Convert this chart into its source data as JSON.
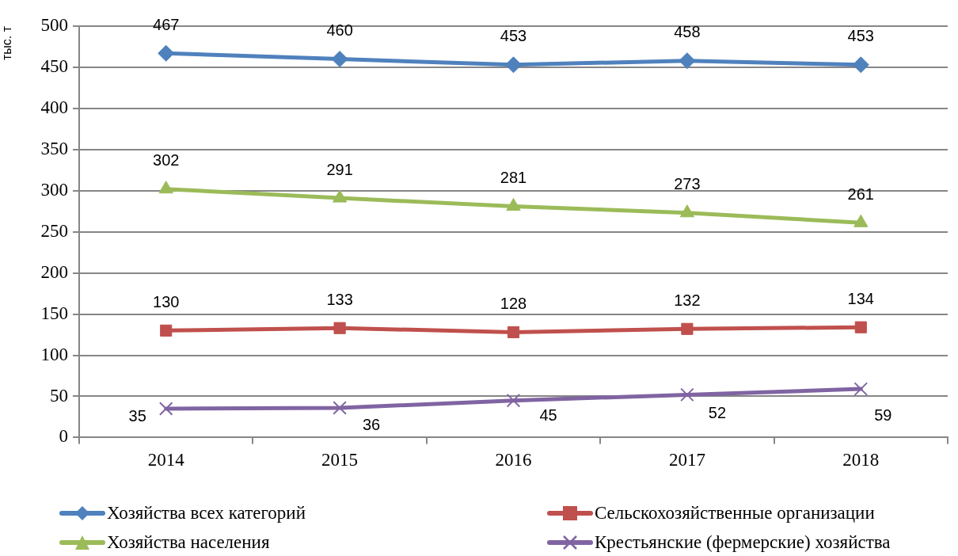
{
  "chart_data": {
    "type": "line",
    "ylabel": "тыс. т",
    "categories": [
      "2014",
      "2015",
      "2016",
      "2017",
      "2018"
    ],
    "series": [
      {
        "name": "Хозяйства всех категорий",
        "color": "#4f81bd",
        "marker": "diamond",
        "values": [
          467,
          460,
          453,
          458,
          453
        ]
      },
      {
        "name": "Сельскохозяйственные организации",
        "color": "#c0504d",
        "marker": "square",
        "values": [
          130,
          133,
          128,
          132,
          134
        ]
      },
      {
        "name": "Хозяйства населения",
        "color": "#9bbb59",
        "marker": "triangle",
        "values": [
          302,
          291,
          281,
          273,
          261
        ]
      },
      {
        "name": "Крестьянские (фермерские) хозяйства",
        "color": "#8064a2",
        "marker": "cross",
        "values": [
          35,
          36,
          45,
          52,
          59
        ]
      }
    ],
    "ylim": [
      0,
      500
    ],
    "yticks": [
      0,
      50,
      100,
      150,
      200,
      250,
      300,
      350,
      400,
      450,
      500
    ],
    "grid": "y",
    "legend": "bottom",
    "data_labels": true,
    "line_style": "solid"
  }
}
